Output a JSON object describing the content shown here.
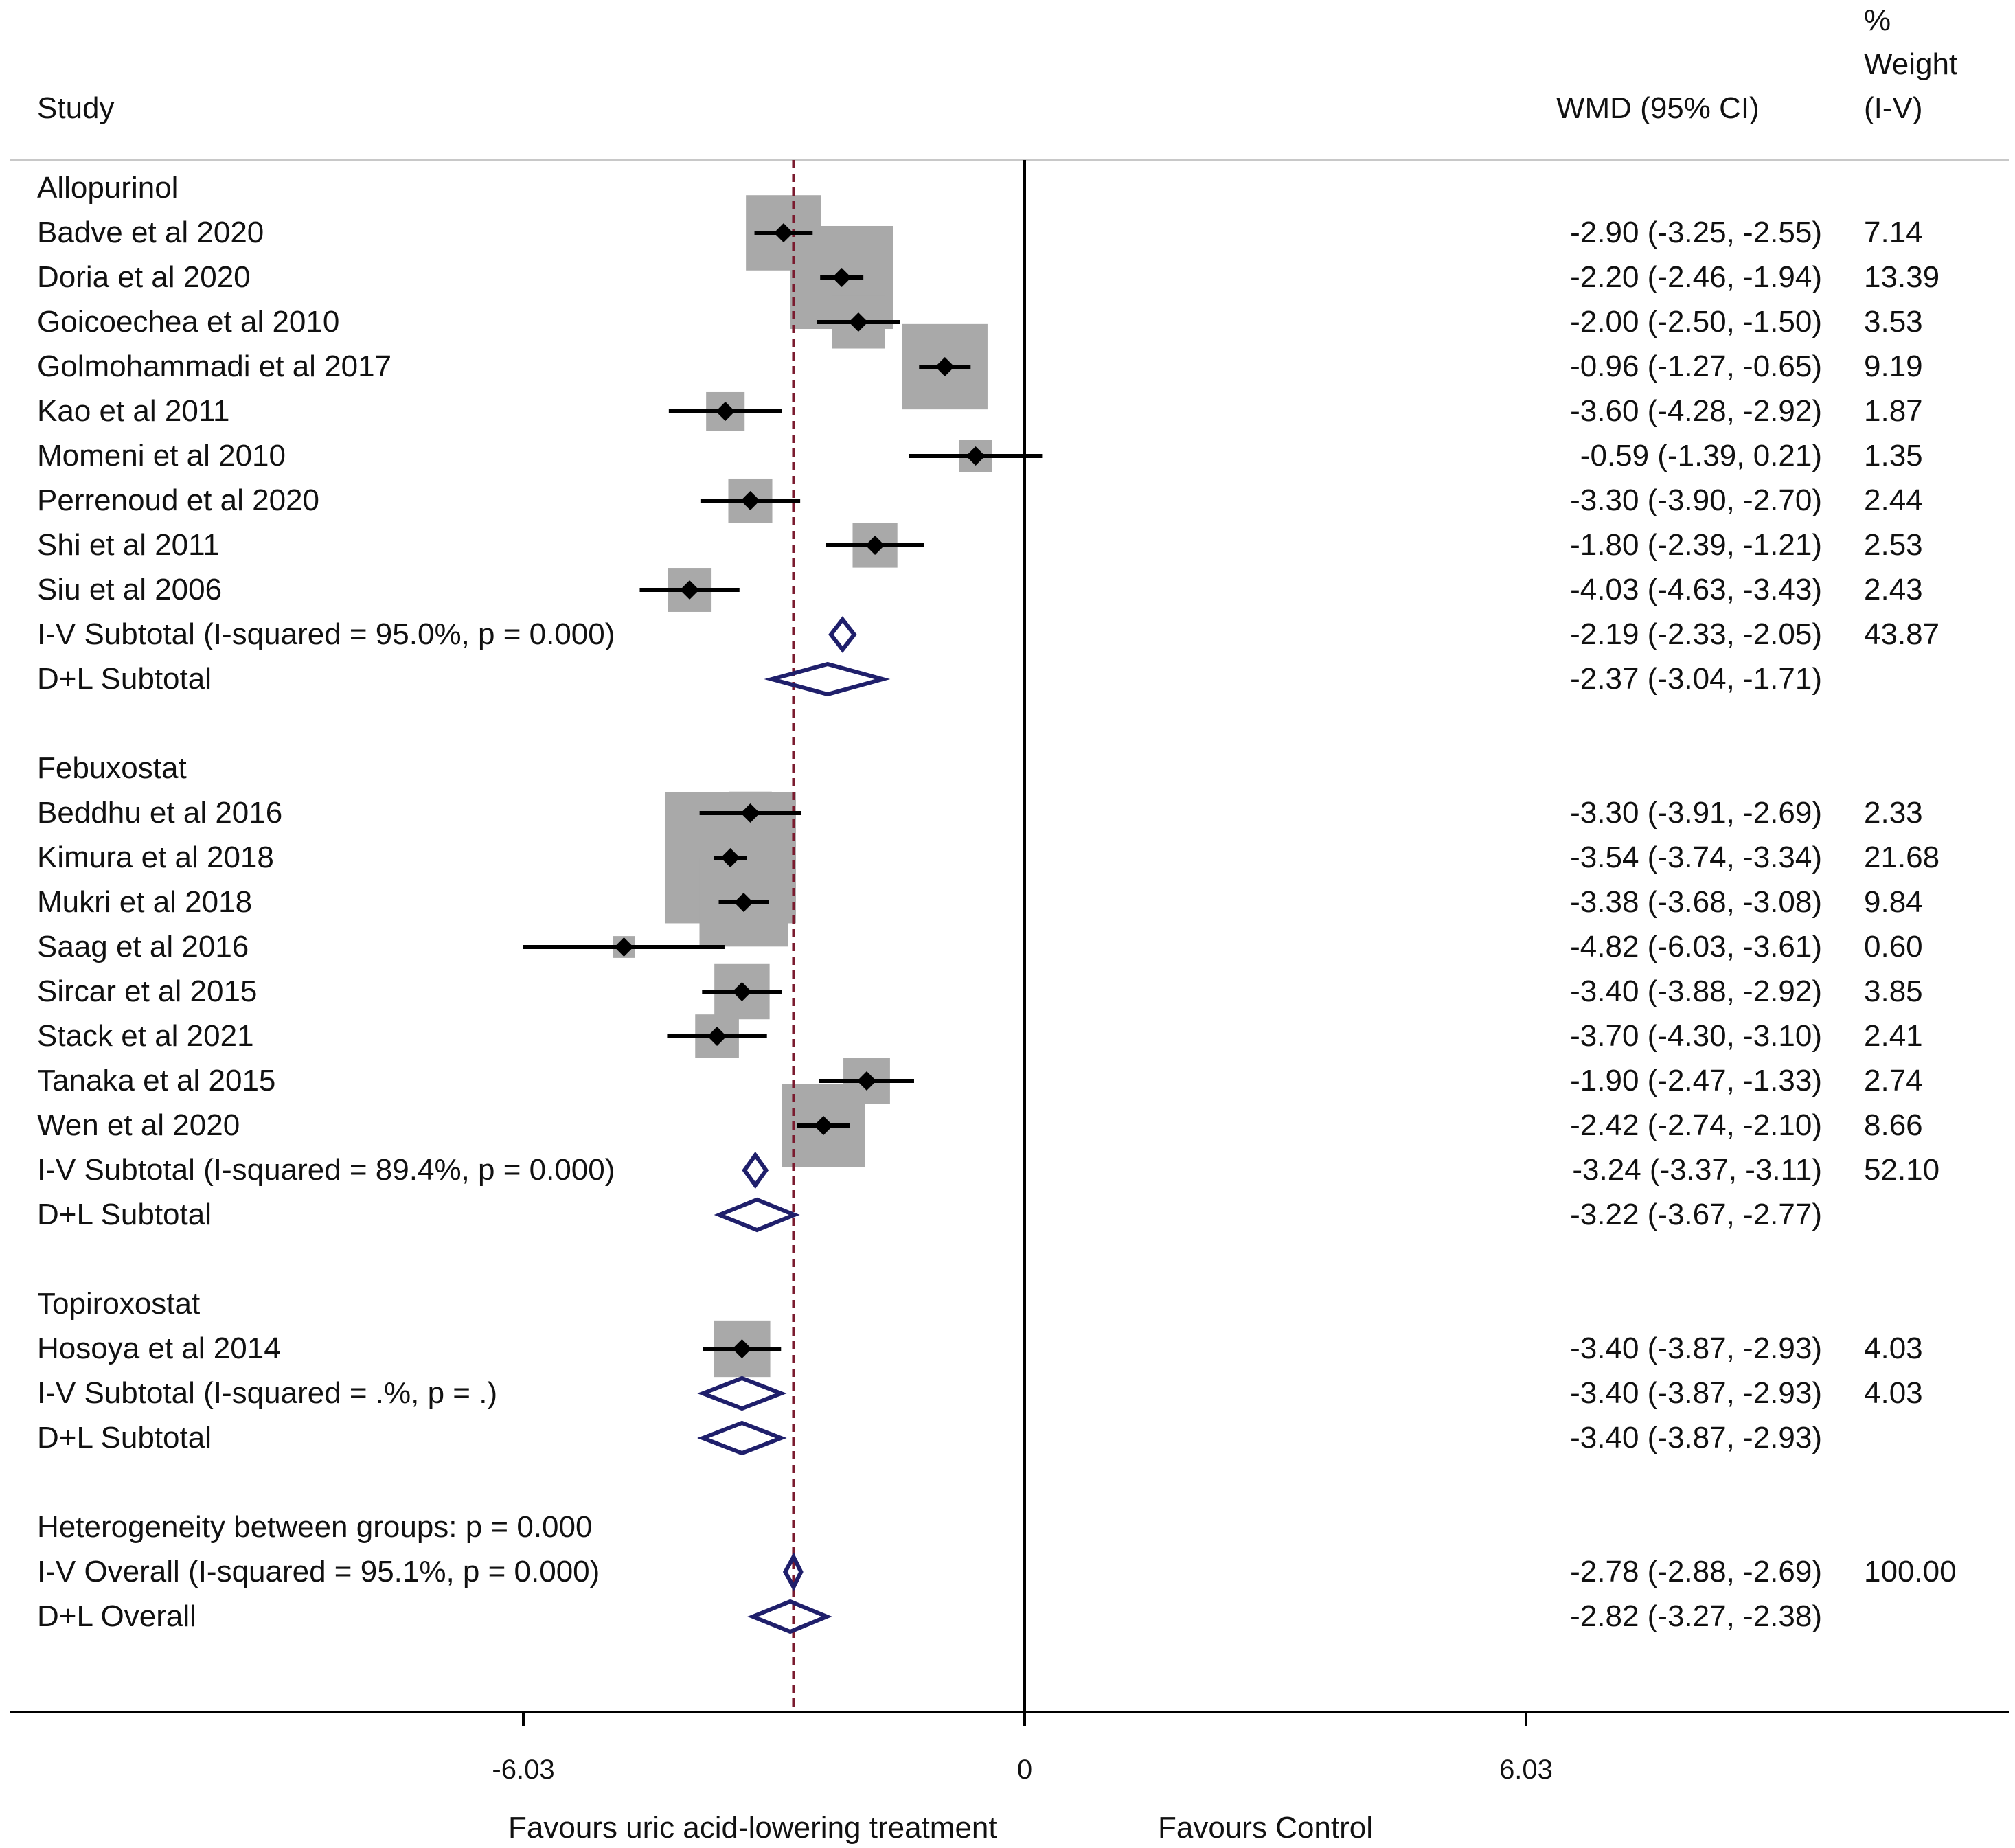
{
  "chart_data": {
    "type": "forest",
    "headers": {
      "study": "Study",
      "effect": "WMD (95% CI)",
      "weight": [
        "%",
        "Weight",
        "(I-V)"
      ]
    },
    "rows": [
      {
        "kind": "group",
        "label": "Allopurinol"
      },
      {
        "kind": "study",
        "label": "Badve et al 2020",
        "est": -2.9,
        "lo": -3.25,
        "hi": -2.55,
        "weight": 7.14,
        "text": "-2.90 (-3.25, -2.55)",
        "weight_text": "7.14"
      },
      {
        "kind": "study",
        "label": "Doria et al 2020",
        "est": -2.2,
        "lo": -2.46,
        "hi": -1.94,
        "weight": 13.39,
        "text": "-2.20 (-2.46, -1.94)",
        "weight_text": "13.39"
      },
      {
        "kind": "study",
        "label": "Goicoechea et al 2010",
        "est": -2.0,
        "lo": -2.5,
        "hi": -1.5,
        "weight": 3.53,
        "text": "-2.00 (-2.50, -1.50)",
        "weight_text": "3.53"
      },
      {
        "kind": "study",
        "label": "Golmohammadi et al 2017",
        "est": -0.96,
        "lo": -1.27,
        "hi": -0.65,
        "weight": 9.19,
        "text": "-0.96 (-1.27, -0.65)",
        "weight_text": "9.19"
      },
      {
        "kind": "study",
        "label": "Kao et al 2011",
        "est": -3.6,
        "lo": -4.28,
        "hi": -2.92,
        "weight": 1.87,
        "text": "-3.60 (-4.28, -2.92)",
        "weight_text": "1.87"
      },
      {
        "kind": "study",
        "label": "Momeni et al 2010",
        "est": -0.59,
        "lo": -1.39,
        "hi": 0.21,
        "weight": 1.35,
        "text": "-0.59 (-1.39, 0.21)",
        "weight_text": "1.35"
      },
      {
        "kind": "study",
        "label": "Perrenoud et al 2020",
        "est": -3.3,
        "lo": -3.9,
        "hi": -2.7,
        "weight": 2.44,
        "text": "-3.30 (-3.90, -2.70)",
        "weight_text": "2.44"
      },
      {
        "kind": "study",
        "label": "Shi et al 2011",
        "est": -1.8,
        "lo": -2.39,
        "hi": -1.21,
        "weight": 2.53,
        "text": "-1.80 (-2.39, -1.21)",
        "weight_text": "2.53"
      },
      {
        "kind": "study",
        "label": "Siu et al 2006",
        "est": -4.03,
        "lo": -4.63,
        "hi": -3.43,
        "weight": 2.43,
        "text": "-4.03 (-4.63, -3.43)",
        "weight_text": "2.43"
      },
      {
        "kind": "iv",
        "label": "I-V Subtotal  (I-squared = 95.0%, p = 0.000)",
        "est": -2.19,
        "lo": -2.33,
        "hi": -2.05,
        "weight": 43.87,
        "text": "-2.19 (-2.33, -2.05)",
        "weight_text": "43.87"
      },
      {
        "kind": "dl",
        "label": "D+L Subtotal",
        "est": -2.37,
        "lo": -3.04,
        "hi": -1.71,
        "text": "-2.37 (-3.04, -1.71)",
        "weight_text": ""
      },
      {
        "kind": "blank",
        "label": ""
      },
      {
        "kind": "group",
        "label": "Febuxostat"
      },
      {
        "kind": "study",
        "label": "Beddhu et al 2016",
        "est": -3.3,
        "lo": -3.91,
        "hi": -2.69,
        "weight": 2.33,
        "text": "-3.30 (-3.91, -2.69)",
        "weight_text": "2.33"
      },
      {
        "kind": "study",
        "label": "Kimura et al 2018",
        "est": -3.54,
        "lo": -3.74,
        "hi": -3.34,
        "weight": 21.68,
        "text": "-3.54 (-3.74, -3.34)",
        "weight_text": "21.68"
      },
      {
        "kind": "study",
        "label": "Mukri et al 2018",
        "est": -3.38,
        "lo": -3.68,
        "hi": -3.08,
        "weight": 9.84,
        "text": "-3.38 (-3.68, -3.08)",
        "weight_text": "9.84"
      },
      {
        "kind": "study",
        "label": "Saag et al 2016",
        "est": -4.82,
        "lo": -6.03,
        "hi": -3.61,
        "weight": 0.6,
        "text": "-4.82 (-6.03, -3.61)",
        "weight_text": "0.60"
      },
      {
        "kind": "study",
        "label": "Sircar et al 2015",
        "est": -3.4,
        "lo": -3.88,
        "hi": -2.92,
        "weight": 3.85,
        "text": "-3.40 (-3.88, -2.92)",
        "weight_text": "3.85"
      },
      {
        "kind": "study",
        "label": "Stack et al 2021",
        "est": -3.7,
        "lo": -4.3,
        "hi": -3.1,
        "weight": 2.41,
        "text": "-3.70 (-4.30, -3.10)",
        "weight_text": "2.41"
      },
      {
        "kind": "study",
        "label": "Tanaka et al 2015",
        "est": -1.9,
        "lo": -2.47,
        "hi": -1.33,
        "weight": 2.74,
        "text": "-1.90 (-2.47, -1.33)",
        "weight_text": "2.74"
      },
      {
        "kind": "study",
        "label": "Wen et al 2020",
        "est": -2.42,
        "lo": -2.74,
        "hi": -2.1,
        "weight": 8.66,
        "text": "-2.42 (-2.74, -2.10)",
        "weight_text": "8.66"
      },
      {
        "kind": "iv",
        "label": "I-V Subtotal  (I-squared = 89.4%, p = 0.000)",
        "est": -3.24,
        "lo": -3.37,
        "hi": -3.11,
        "weight": 52.1,
        "text": "-3.24 (-3.37, -3.11)",
        "weight_text": "52.10"
      },
      {
        "kind": "dl",
        "label": "D+L Subtotal",
        "est": -3.22,
        "lo": -3.67,
        "hi": -2.77,
        "text": "-3.22 (-3.67, -2.77)",
        "weight_text": ""
      },
      {
        "kind": "blank",
        "label": ""
      },
      {
        "kind": "group",
        "label": "Topiroxostat"
      },
      {
        "kind": "study",
        "label": "Hosoya et al 2014",
        "est": -3.4,
        "lo": -3.87,
        "hi": -2.93,
        "weight": 4.03,
        "text": "-3.40 (-3.87, -2.93)",
        "weight_text": "4.03"
      },
      {
        "kind": "iv",
        "label": "I-V Subtotal  (I-squared = .%, p = .)",
        "est": -3.4,
        "lo": -3.87,
        "hi": -2.93,
        "weight": 4.03,
        "text": "-3.40 (-3.87, -2.93)",
        "weight_text": "4.03"
      },
      {
        "kind": "dl",
        "label": "D+L Subtotal",
        "est": -3.4,
        "lo": -3.87,
        "hi": -2.93,
        "text": "-3.40 (-3.87, -2.93)",
        "weight_text": ""
      },
      {
        "kind": "blank",
        "label": ""
      },
      {
        "kind": "note",
        "label": "Heterogeneity between groups: p = 0.000"
      },
      {
        "kind": "iv",
        "label": "I-V Overall  (I-squared = 95.1%, p = 0.000)",
        "est": -2.78,
        "lo": -2.88,
        "hi": -2.69,
        "weight": 100.0,
        "text": "-2.78 (-2.88, -2.69)",
        "weight_text": "100.00"
      },
      {
        "kind": "dl",
        "label": "D+L Overall",
        "est": -2.82,
        "lo": -3.27,
        "hi": -2.38,
        "text": "-2.82 (-3.27, -2.38)",
        "weight_text": ""
      }
    ],
    "xlim": [
      -12.06,
      12.06
    ],
    "xticks": [
      -6.03,
      0,
      6.03
    ],
    "xtick_labels": [
      "-6.03",
      "0",
      "6.03"
    ],
    "null_line": 0,
    "overall_line": -2.78,
    "favours_left": "Favours uric acid-lowering treatment",
    "favours_right": "Favours Control",
    "colors": {
      "box": "#a9a9a9",
      "point": "#000000",
      "diamond": "#1f1f6b",
      "overall_line": "#7a1a2e",
      "axis": "#000000",
      "divider": "#c8c8c8"
    }
  }
}
